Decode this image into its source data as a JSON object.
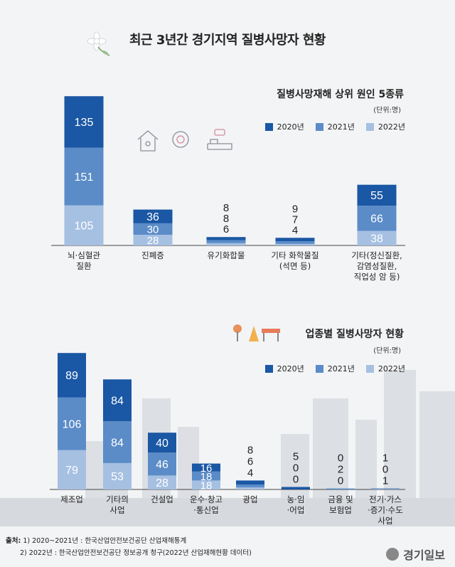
{
  "title": "최근 3년간 경기지역 질병사망자 현황",
  "colors": {
    "y2020": "#1a57a4",
    "y2021": "#5b8cc8",
    "y2022": "#a6c0e2"
  },
  "chart_data": [
    {
      "type": "bar",
      "stacked": true,
      "title": "질병사망재해 상위 원인 5종류",
      "unit": "(단위:명)",
      "legend": [
        "2020년",
        "2021년",
        "2022년"
      ],
      "categories": [
        [
          "뇌·심혈관",
          "질환"
        ],
        [
          "진폐증"
        ],
        [
          "유기화합물"
        ],
        [
          "기타 화학물질",
          "(석면 등)"
        ],
        [
          "기타(정신질환,",
          "감염성질환,",
          "직업성 암 등)"
        ]
      ],
      "series": [
        {
          "name": "2020년",
          "values": [
            135,
            36,
            8,
            9,
            55
          ]
        },
        {
          "name": "2021년",
          "values": [
            151,
            30,
            8,
            7,
            66
          ]
        },
        {
          "name": "2022년",
          "values": [
            105,
            28,
            6,
            4,
            38
          ]
        }
      ]
    },
    {
      "type": "bar",
      "stacked": true,
      "title": "업종별 질병사망자 현황",
      "unit": "(단위:명)",
      "legend": [
        "2020년",
        "2021년",
        "2022년"
      ],
      "categories": [
        [
          "제조업"
        ],
        [
          "기타의",
          "사업"
        ],
        [
          "건설업"
        ],
        [
          "운수·창고",
          "·통신업"
        ],
        [
          "광업"
        ],
        [
          "농·임",
          "·어업"
        ],
        [
          "금융 및",
          "보험업"
        ],
        [
          "전기·가스",
          "·증기·수도",
          "사업"
        ]
      ],
      "series": [
        {
          "name": "2020년",
          "values": [
            89,
            84,
            40,
            16,
            8,
            5,
            0,
            1
          ]
        },
        {
          "name": "2021년",
          "values": [
            106,
            84,
            46,
            18,
            6,
            0,
            2,
            0
          ]
        },
        {
          "name": "2022년",
          "values": [
            79,
            53,
            28,
            18,
            4,
            0,
            0,
            1
          ]
        }
      ]
    }
  ],
  "footer": {
    "source_label": "출처:",
    "line1": "1) 2020~2021년 : 한국산업안전보건공단 산업재해통계",
    "line2": "2) 2022년 : 한국산업안전보건공단 정보공개 청구(2022년 산업재해현황 데이터)"
  },
  "logo": "경기일보"
}
